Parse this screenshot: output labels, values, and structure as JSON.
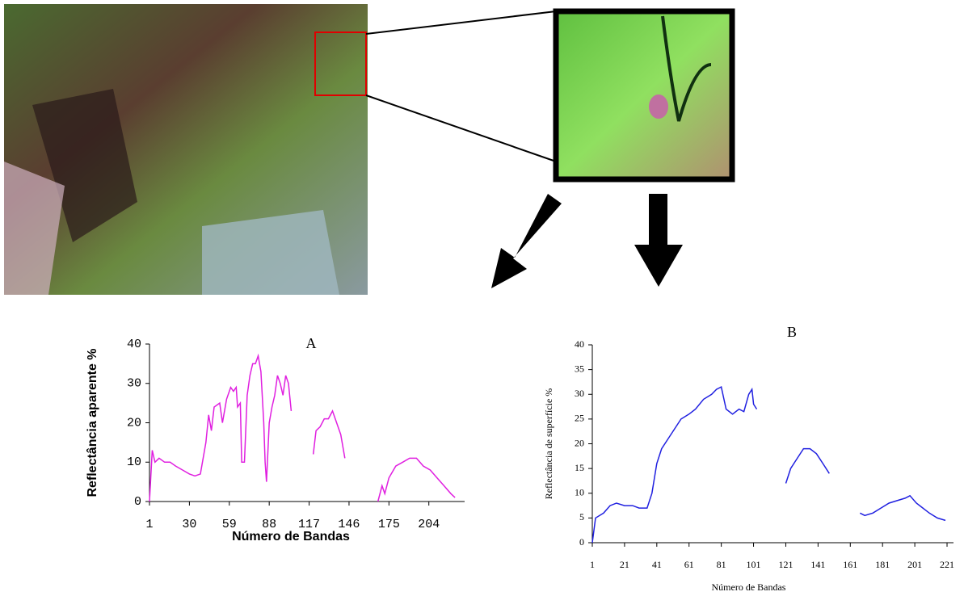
{
  "chart_data": [
    {
      "type": "line",
      "title": "A",
      "x_label": "Número de Bandas",
      "y_label": "Reflectância aparente %",
      "xlim": [
        1,
        230
      ],
      "xticks": [
        1,
        30,
        59,
        88,
        117,
        146,
        175,
        204
      ],
      "ylim": [
        0,
        40
      ],
      "yticks": [
        0,
        10,
        20,
        30,
        40
      ],
      "series": [
        {
          "color": "#e020e0",
          "x": [
            1,
            3,
            5,
            8,
            12,
            16,
            20,
            25,
            30,
            34,
            38,
            42,
            44,
            46,
            48,
            52,
            54,
            57,
            60,
            62,
            64,
            65,
            67,
            68,
            70,
            72,
            74,
            76,
            78,
            80,
            82,
            84,
            85,
            86,
            88,
            90,
            92,
            94,
            96,
            98,
            100,
            102,
            104,
            null,
            120,
            122,
            125,
            128,
            131,
            134,
            137,
            140,
            143,
            null,
            167,
            170,
            172,
            175,
            180,
            185,
            190,
            195,
            200,
            205,
            210,
            215,
            220,
            223
          ],
          "values": [
            0,
            13,
            10,
            11,
            10,
            10,
            9,
            8,
            7,
            6.5,
            7,
            15,
            22,
            18,
            24,
            25,
            20,
            26,
            29,
            28,
            29,
            24,
            25,
            10,
            10,
            27,
            32,
            35,
            35,
            37,
            33,
            20,
            10,
            5,
            20,
            24,
            27,
            32,
            30,
            27,
            32,
            30,
            23,
            null,
            12,
            18,
            19,
            21,
            21,
            23,
            20,
            17,
            11,
            null,
            0,
            4,
            2,
            6,
            9,
            10,
            11,
            11,
            9,
            8,
            6,
            4,
            2,
            1
          ]
        }
      ]
    },
    {
      "type": "line",
      "title": "B",
      "x_label": "Número de Bandas",
      "y_label": "Reflectância de superfície %",
      "xlim": [
        1,
        225
      ],
      "xticks": [
        1,
        21,
        41,
        61,
        81,
        101,
        121,
        141,
        161,
        181,
        201,
        221
      ],
      "ylim": [
        0,
        40
      ],
      "yticks": [
        0,
        5,
        10,
        15,
        20,
        25,
        30,
        35,
        40
      ],
      "series": [
        {
          "color": "#2020e0",
          "x": [
            1,
            3,
            8,
            12,
            16,
            21,
            26,
            30,
            35,
            38,
            41,
            44,
            48,
            52,
            56,
            61,
            65,
            70,
            75,
            78,
            81,
            84,
            88,
            92,
            95,
            98,
            100,
            101,
            103,
            null,
            121,
            124,
            128,
            132,
            136,
            140,
            144,
            148,
            null,
            167,
            170,
            175,
            180,
            185,
            190,
            195,
            198,
            202,
            206,
            210,
            215,
            220
          ],
          "values": [
            0,
            5,
            6,
            7.5,
            8,
            7.5,
            7.5,
            7,
            7,
            10,
            16,
            19,
            21,
            23,
            25,
            26,
            27,
            29,
            30,
            31,
            31.5,
            27,
            26,
            27,
            26.5,
            30,
            31,
            28,
            27,
            null,
            12,
            15,
            17,
            19,
            19,
            18,
            16,
            14,
            null,
            6,
            5.5,
            6,
            7,
            8,
            8.5,
            9,
            9.5,
            8,
            7,
            6,
            5,
            4.5
          ]
        }
      ]
    }
  ]
}
